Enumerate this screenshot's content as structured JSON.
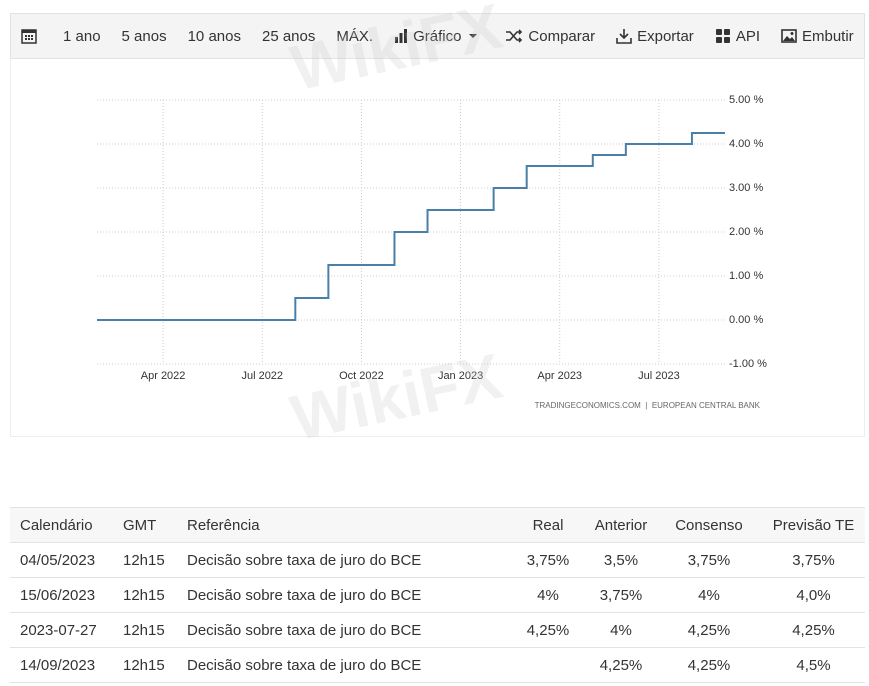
{
  "watermark": "WikiFX",
  "toolbar": {
    "items": [
      "1 ano",
      "5 anos",
      "10 anos",
      "25 anos",
      "MÁX.",
      "Gráfico",
      "Comparar",
      "Exportar",
      "API",
      "Embutir"
    ]
  },
  "chart_data": {
    "type": "line",
    "step": true,
    "color": "#4a7fa8",
    "grid": true,
    "source": "TRADINGECONOMICS.COM  |  EUROPEAN CENTRAL BANK",
    "x": [
      "2022-02",
      "2022-08",
      "2022-09",
      "2022-11",
      "2022-12",
      "2023-02",
      "2023-03",
      "2023-05",
      "2023-06",
      "2023-08",
      "2023-09"
    ],
    "values": [
      0,
      0.5,
      1.25,
      2,
      2.5,
      3,
      3.5,
      3.75,
      4,
      4.25,
      4.25
    ],
    "xlim": [
      "2022-02",
      "2023-09"
    ],
    "xticks": [
      {
        "value": "2022-04",
        "label": "Apr 2022"
      },
      {
        "value": "2022-07",
        "label": "Jul 2022"
      },
      {
        "value": "2022-10",
        "label": "Oct 2022"
      },
      {
        "value": "2023-01",
        "label": "Jan 2023"
      },
      {
        "value": "2023-04",
        "label": "Apr 2023"
      },
      {
        "value": "2023-07",
        "label": "Jul 2023"
      }
    ],
    "ylim": [
      -1,
      5
    ],
    "yticks": [
      {
        "value": 5,
        "label": "5.00 %"
      },
      {
        "value": 4,
        "label": "4.00 %"
      },
      {
        "value": 3,
        "label": "3.00 %"
      },
      {
        "value": 2,
        "label": "2.00 %"
      },
      {
        "value": 1,
        "label": "1.00 %"
      },
      {
        "value": 0,
        "label": "0.00 %"
      },
      {
        "value": -1,
        "label": "-1.00 %"
      }
    ]
  },
  "table": {
    "columns": [
      "Calendário",
      "GMT",
      "Referência",
      "Real",
      "Anterior",
      "Consenso",
      "Previsão TE"
    ],
    "rows": [
      [
        "04/05/2023",
        "12h15",
        "Decisão sobre taxa de juro do BCE",
        "3,75%",
        "3,5%",
        "3,75%",
        "3,75%"
      ],
      [
        "15/06/2023",
        "12h15",
        "Decisão sobre taxa de juro do BCE",
        "4%",
        "3,75%",
        "4%",
        "4,0%"
      ],
      [
        "2023-07-27",
        "12h15",
        "Decisão sobre taxa de juro do BCE",
        "4,25%",
        "4%",
        "4,25%",
        "4,25%"
      ],
      [
        "14/09/2023",
        "12h15",
        "Decisão sobre taxa de juro do BCE",
        null,
        "4,25%",
        "4,25%",
        "4,5%"
      ]
    ]
  }
}
